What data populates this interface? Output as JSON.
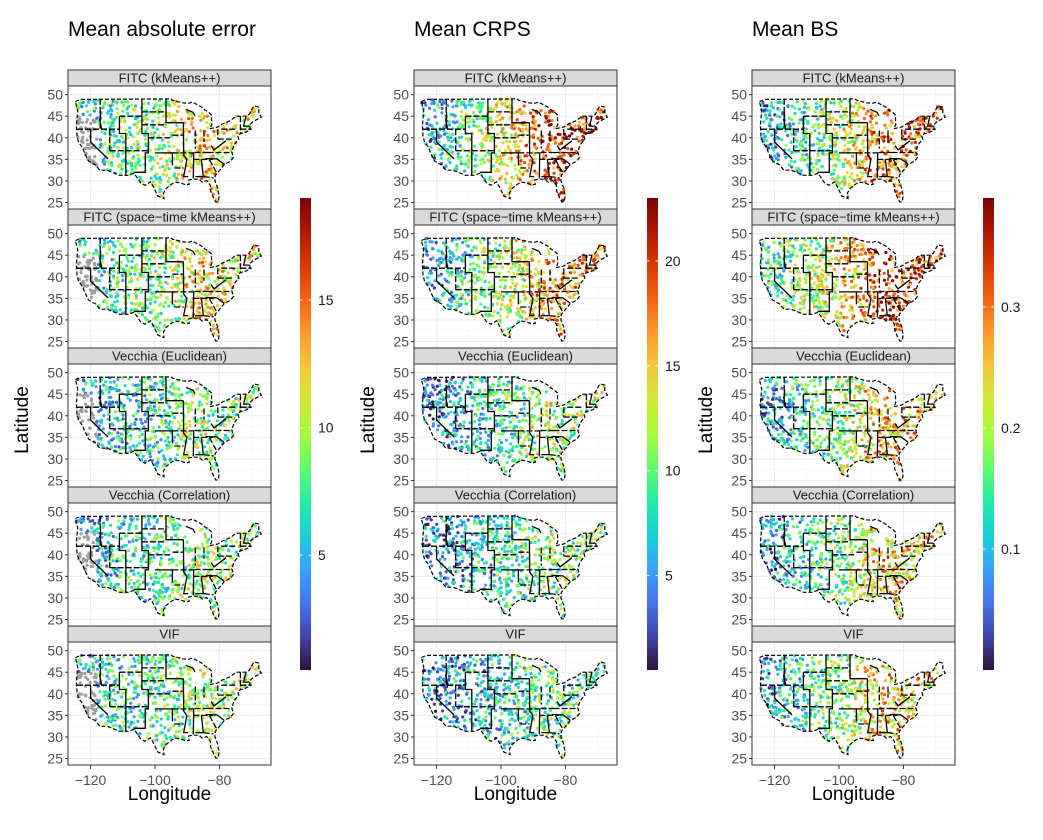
{
  "figure": {
    "ylabel": "Latitude",
    "xlabel": "Longitude"
  },
  "chart_data": [
    {
      "type": "scatter-map",
      "title": "Mean absolute error",
      "panels": [
        "FITC (kMeans++)",
        "FITC (space−time kMeans++)",
        "Vecchia (Euclidean)",
        "Vecchia (Correlation)",
        "VIF"
      ],
      "xlabel": "Longitude",
      "ylabel": "Latitude",
      "x_ticks": [
        -120,
        -100,
        -80
      ],
      "x_tick_labels": [
        "−120",
        "−100",
        "−80"
      ],
      "y_ticks": [
        25,
        30,
        35,
        40,
        45,
        50
      ],
      "y_tick_labels": [
        "25",
        "30",
        "35",
        "40",
        "45",
        "50"
      ],
      "xlim": [
        -127,
        -64
      ],
      "ylim": [
        23.5,
        52
      ],
      "color_scale": {
        "min": 0.5,
        "max": 19,
        "ticks": [
          5,
          10,
          15
        ],
        "tick_labels": [
          "5",
          "10",
          "15"
        ],
        "palette": "turbo",
        "na_color": "#9e9e9e"
      },
      "west_missing": [
        true,
        true,
        true,
        true,
        true
      ],
      "east_level": [
        0.62,
        0.6,
        0.45,
        0.48,
        0.52
      ],
      "west_level": [
        0.3,
        0.3,
        0.22,
        0.24,
        0.26
      ]
    },
    {
      "type": "scatter-map",
      "title": "Mean CRPS",
      "panels": [
        "FITC (kMeans++)",
        "FITC (space−time kMeans++)",
        "Vecchia (Euclidean)",
        "Vecchia (Correlation)",
        "VIF"
      ],
      "xlabel": "Longitude",
      "ylabel": "Latitude",
      "x_ticks": [
        -120,
        -100,
        -80
      ],
      "x_tick_labels": [
        "−120",
        "−100",
        "−80"
      ],
      "y_ticks": [
        25,
        30,
        35,
        40,
        45,
        50
      ],
      "y_tick_labels": [
        "25",
        "30",
        "35",
        "40",
        "45",
        "50"
      ],
      "xlim": [
        -127,
        -64
      ],
      "ylim": [
        23.5,
        52
      ],
      "color_scale": {
        "min": 0.5,
        "max": 23,
        "ticks": [
          5,
          10,
          15,
          20
        ],
        "tick_labels": [
          "5",
          "10",
          "15",
          "20"
        ],
        "palette": "turbo",
        "na_color": "#9e9e9e"
      },
      "west_missing": [
        false,
        false,
        false,
        false,
        false
      ],
      "east_level": [
        0.85,
        0.72,
        0.5,
        0.45,
        0.38
      ],
      "west_level": [
        0.22,
        0.22,
        0.16,
        0.17,
        0.18
      ]
    },
    {
      "type": "scatter-map",
      "title": "Mean BS",
      "panels": [
        "FITC (kMeans++)",
        "FITC (space−time kMeans++)",
        "Vecchia (Euclidean)",
        "Vecchia (Correlation)",
        "VIF"
      ],
      "xlabel": "Longitude",
      "ylabel": "Latitude",
      "x_ticks": [
        -120,
        -100,
        -80
      ],
      "x_tick_labels": [
        "−120",
        "−100",
        "−80"
      ],
      "y_ticks": [
        25,
        30,
        35,
        40,
        45,
        50
      ],
      "y_tick_labels": [
        "25",
        "30",
        "35",
        "40",
        "45",
        "50"
      ],
      "xlim": [
        -127,
        -64
      ],
      "ylim": [
        23.5,
        52
      ],
      "color_scale": {
        "min": 0.0,
        "max": 0.39,
        "ticks": [
          0.1,
          0.2,
          0.3
        ],
        "tick_labels": [
          "0.1",
          "0.2",
          "0.3"
        ],
        "palette": "turbo",
        "na_color": "#9e9e9e"
      },
      "west_missing": [
        false,
        false,
        false,
        false,
        false
      ],
      "east_level": [
        0.78,
        0.85,
        0.68,
        0.65,
        0.66
      ],
      "west_level": [
        0.2,
        0.35,
        0.2,
        0.18,
        0.22
      ]
    }
  ]
}
